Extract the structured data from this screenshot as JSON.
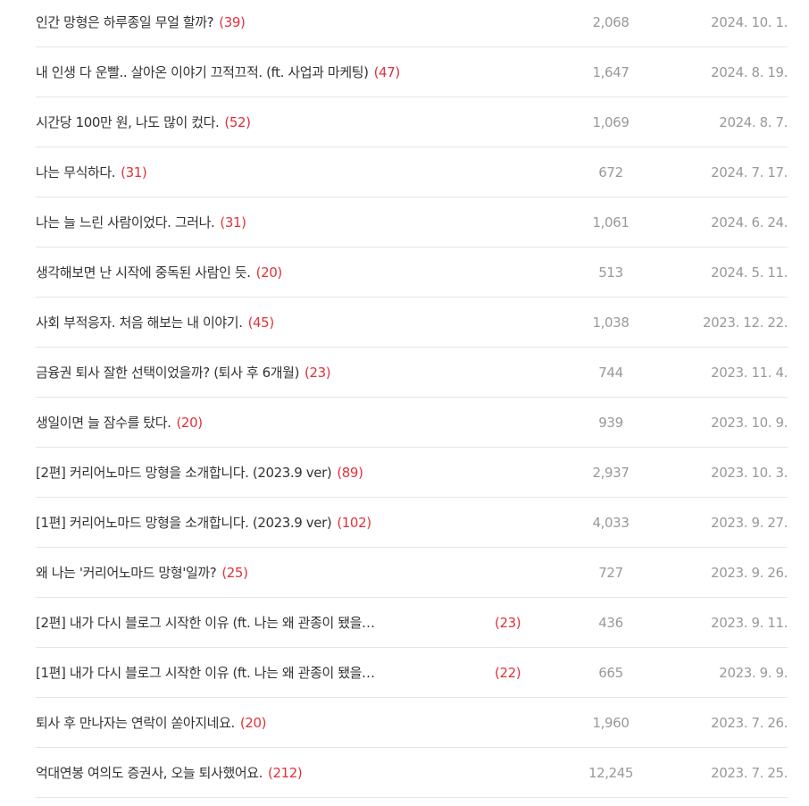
{
  "colors": {
    "title": "#333333",
    "comment_count": "#e0323c",
    "meta": "#999999"
  },
  "posts": [
    {
      "title": "인간 망형은 하루종일 무얼 할까?",
      "comments": "(39)",
      "views": "2,068",
      "date": "2024. 10. 1.",
      "truncated": false
    },
    {
      "title": "내 인생 다 운빨.. 살아온 이야기 끄적끄적. (ft. 사업과 마케팅)",
      "comments": "(47)",
      "views": "1,647",
      "date": "2024. 8. 19.",
      "truncated": false
    },
    {
      "title": "시간당 100만 원, 나도 많이 컸다.",
      "comments": "(52)",
      "views": "1,069",
      "date": "2024. 8. 7.",
      "truncated": false
    },
    {
      "title": "나는 무식하다.",
      "comments": "(31)",
      "views": "672",
      "date": "2024. 7. 17.",
      "truncated": false
    },
    {
      "title": "나는 늘 느린 사람이었다. 그러나.",
      "comments": "(31)",
      "views": "1,061",
      "date": "2024. 6. 24.",
      "truncated": false
    },
    {
      "title": "생각해보면 난 시작에 중독된 사람인 듯.",
      "comments": "(20)",
      "views": "513",
      "date": "2024. 5. 11.",
      "truncated": false
    },
    {
      "title": "사회 부적응자. 처음 해보는 내 이야기.",
      "comments": "(45)",
      "views": "1,038",
      "date": "2023. 12. 22.",
      "truncated": false
    },
    {
      "title": "금융권 퇴사 잘한 선택이었을까? (퇴사 후 6개월)",
      "comments": "(23)",
      "views": "744",
      "date": "2023. 11. 4.",
      "truncated": false
    },
    {
      "title": "생일이면 늘 잠수를 탔다.",
      "comments": "(20)",
      "views": "939",
      "date": "2023. 10. 9.",
      "truncated": false
    },
    {
      "title": "[2편] 커리어노마드 망형을 소개합니다. (2023.9 ver)",
      "comments": "(89)",
      "views": "2,937",
      "date": "2023. 10. 3.",
      "truncated": false
    },
    {
      "title": "[1편] 커리어노마드 망형을 소개합니다. (2023.9 ver)",
      "comments": "(102)",
      "views": "4,033",
      "date": "2023. 9. 27.",
      "truncated": false
    },
    {
      "title": "왜 나는 '커리어노마드 망형'일까?",
      "comments": "(25)",
      "views": "727",
      "date": "2023. 9. 26.",
      "truncated": false
    },
    {
      "title": "[2편] 내가 다시 블로그 시작한 이유 (ft. 나는 왜 관종이 됐을…",
      "comments": "(23)",
      "views": "436",
      "date": "2023. 9. 11.",
      "truncated": true
    },
    {
      "title": "[1편] 내가 다시 블로그 시작한 이유 (ft. 나는 왜 관종이 됐을…",
      "comments": "(22)",
      "views": "665",
      "date": "2023. 9. 9.",
      "truncated": true
    },
    {
      "title": "퇴사 후 만나자는 연락이 쏟아지네요.",
      "comments": "(20)",
      "views": "1,960",
      "date": "2023. 7. 26.",
      "truncated": false
    },
    {
      "title": "억대연봉 여의도 증권사, 오늘 퇴사했어요.",
      "comments": "(212)",
      "views": "12,245",
      "date": "2023. 7. 25.",
      "truncated": false
    }
  ]
}
